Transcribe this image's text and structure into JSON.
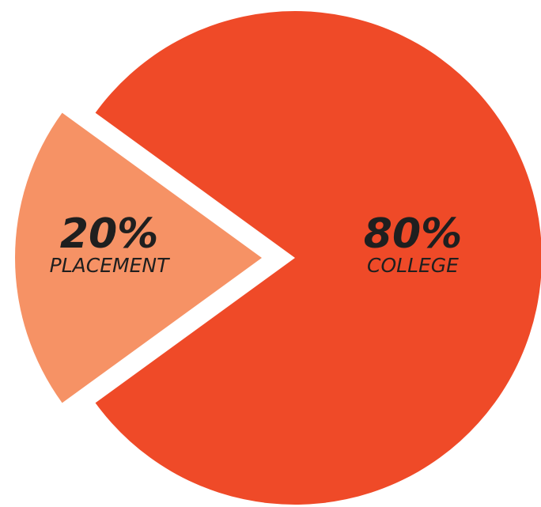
{
  "chart_data": {
    "type": "pie",
    "slices": [
      {
        "label": "COLLEGE",
        "value": 80,
        "value_label": "80%",
        "color": "#ef4a28",
        "exploded": false
      },
      {
        "label": "PLACEMENT",
        "value": 20,
        "value_label": "20%",
        "color": "#f69265",
        "exploded": true
      }
    ],
    "title": "",
    "legend": "none"
  }
}
